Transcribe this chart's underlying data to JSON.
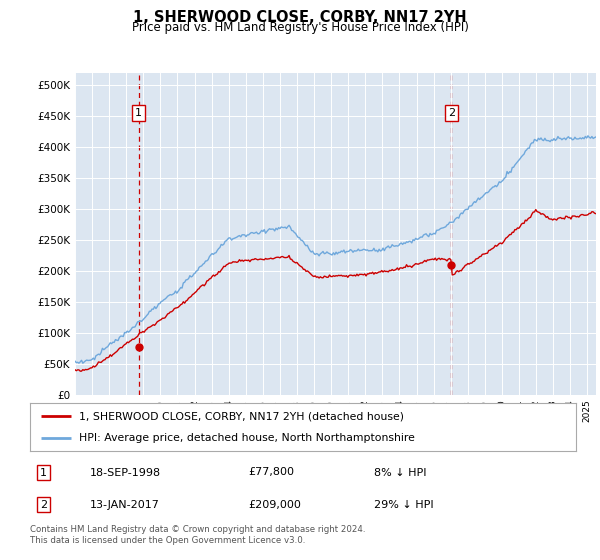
{
  "title": "1, SHERWOOD CLOSE, CORBY, NN17 2YH",
  "subtitle": "Price paid vs. HM Land Registry's House Price Index (HPI)",
  "plot_bg_color": "#dce6f1",
  "yticks": [
    0,
    50000,
    100000,
    150000,
    200000,
    250000,
    300000,
    350000,
    400000,
    450000,
    500000
  ],
  "ytick_labels": [
    "£0",
    "£50K",
    "£100K",
    "£150K",
    "£200K",
    "£250K",
    "£300K",
    "£350K",
    "£400K",
    "£450K",
    "£500K"
  ],
  "ylim": [
    0,
    520000
  ],
  "hpi_color": "#6fa8dc",
  "price_color": "#cc0000",
  "vline_color": "#cc0000",
  "marker1_year": 1998.72,
  "marker1_price": 77800,
  "marker2_year": 2017.04,
  "marker2_price": 209000,
  "sale1_date": "18-SEP-1998",
  "sale1_price": "£77,800",
  "sale1_hpi": "8% ↓ HPI",
  "sale2_date": "13-JAN-2017",
  "sale2_price": "£209,000",
  "sale2_hpi": "29% ↓ HPI",
  "legend_line1": "1, SHERWOOD CLOSE, CORBY, NN17 2YH (detached house)",
  "legend_line2": "HPI: Average price, detached house, North Northamptonshire",
  "footer": "Contains HM Land Registry data © Crown copyright and database right 2024.\nThis data is licensed under the Open Government Licence v3.0.",
  "xmin": 1995,
  "xmax": 2025.5
}
